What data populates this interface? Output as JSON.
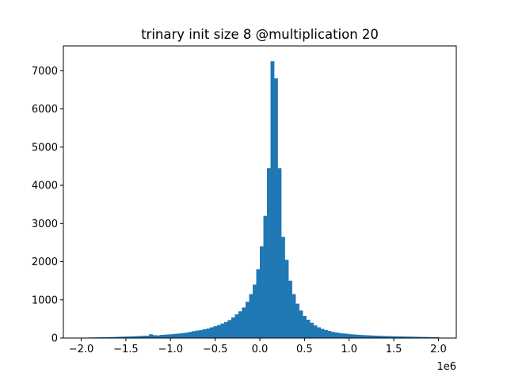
{
  "chart_data": {
    "type": "bar",
    "title": "trinary init size 8 @multiplication 20",
    "xlabel": "",
    "ylabel": "",
    "x_offset_label": "1e6",
    "xlim": [
      -2.2,
      2.2
    ],
    "ylim": [
      0,
      7650
    ],
    "x_scale_factor": 1000000,
    "x_ticks": [
      -2.0,
      -1.5,
      -1.0,
      -0.5,
      0.0,
      0.5,
      1.0,
      1.5,
      2.0
    ],
    "x_tick_labels": [
      "−2.0",
      "−1.5",
      "−1.0",
      "−0.5",
      "0.0",
      "0.5",
      "1.0",
      "1.5",
      "2.0"
    ],
    "y_ticks": [
      0,
      1000,
      2000,
      3000,
      4000,
      5000,
      6000,
      7000
    ],
    "y_tick_labels": [
      "0",
      "1000",
      "2000",
      "3000",
      "4000",
      "5000",
      "6000",
      "7000"
    ],
    "bar_color": "#1f77b4",
    "bins": {
      "start": -2.0,
      "end": 2.0,
      "count": 100,
      "counts": [
        10,
        12,
        14,
        16,
        18,
        20,
        22,
        24,
        26,
        28,
        33,
        36,
        39,
        42,
        46,
        50,
        54,
        58,
        62,
        100,
        75,
        70,
        82,
        88,
        95,
        100,
        110,
        120,
        130,
        140,
        160,
        180,
        195,
        210,
        230,
        250,
        280,
        310,
        340,
        380,
        420,
        470,
        540,
        620,
        700,
        800,
        950,
        1150,
        1400,
        1800,
        2400,
        3200,
        4450,
        7250,
        6800,
        4450,
        2650,
        2050,
        1500,
        1150,
        900,
        720,
        580,
        480,
        400,
        330,
        280,
        240,
        210,
        185,
        160,
        145,
        130,
        120,
        110,
        100,
        92,
        86,
        80,
        75,
        70,
        66,
        62,
        58,
        55,
        52,
        49,
        46,
        44,
        42,
        40,
        38,
        36,
        34,
        32,
        30,
        28,
        26,
        24,
        22
      ]
    }
  }
}
